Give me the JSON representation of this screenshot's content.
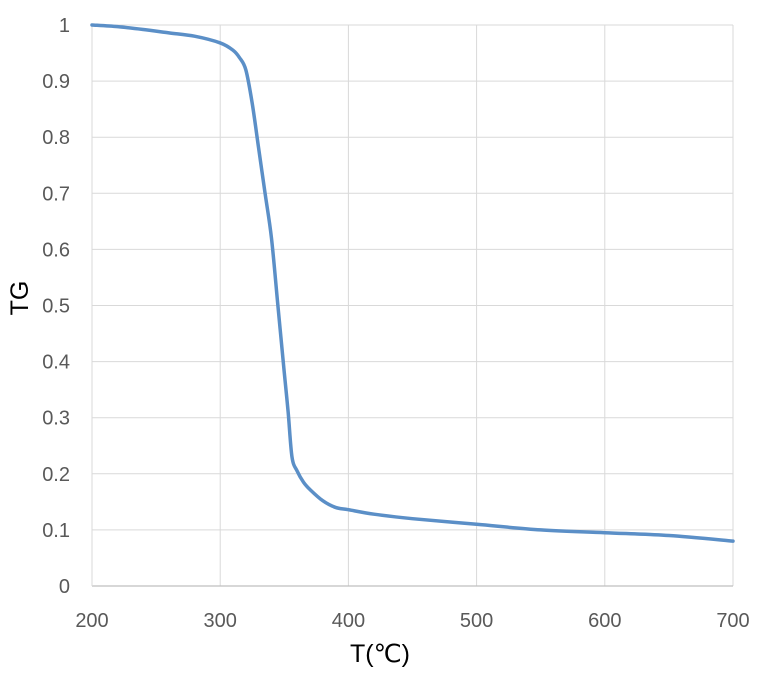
{
  "chart_data": {
    "type": "line",
    "title": "",
    "xlabel": "T(℃)",
    "ylabel": "TG",
    "xlim": [
      200,
      700
    ],
    "ylim": [
      0,
      1
    ],
    "x_ticks": [
      "200",
      "300",
      "400",
      "500",
      "600",
      "700"
    ],
    "y_ticks": [
      "0",
      "0.1",
      "0.2",
      "0.3",
      "0.4",
      "0.5",
      "0.6",
      "0.7",
      "0.8",
      "0.9",
      "1"
    ],
    "grid": true,
    "legend": "none",
    "series": [
      {
        "color": "#5b8fc7",
        "x": [
          200,
          220,
          240,
          260,
          280,
          300,
          310,
          315,
          320,
          325,
          330,
          335,
          340,
          345,
          350,
          353,
          356,
          360,
          365,
          370,
          380,
          390,
          400,
          420,
          450,
          500,
          550,
          600,
          650,
          700
        ],
        "y": [
          1.0,
          0.997,
          0.992,
          0.986,
          0.98,
          0.968,
          0.955,
          0.942,
          0.92,
          0.86,
          0.78,
          0.7,
          0.62,
          0.5,
          0.38,
          0.31,
          0.23,
          0.205,
          0.185,
          0.172,
          0.152,
          0.14,
          0.136,
          0.128,
          0.12,
          0.11,
          0.1,
          0.095,
          0.09,
          0.08
        ]
      }
    ]
  }
}
